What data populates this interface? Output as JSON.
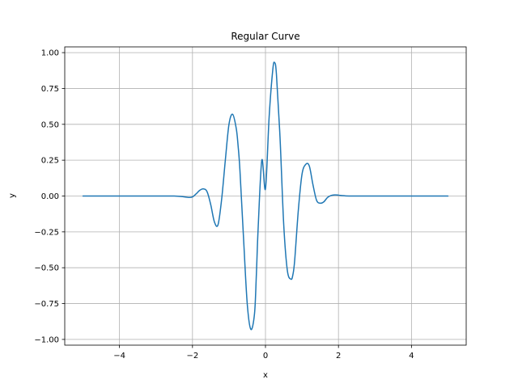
{
  "chart_data": {
    "type": "line",
    "title": "Regular Curve",
    "xlabel": "x",
    "ylabel": "y",
    "xlim": [
      -5.5,
      5.5
    ],
    "ylim": [
      -1.04,
      1.04
    ],
    "grid": true,
    "x_ticks": [
      -4,
      -2,
      0,
      2,
      4
    ],
    "x_tick_labels": [
      "−4",
      "−2",
      "0",
      "2",
      "4"
    ],
    "y_ticks": [
      -1.0,
      -0.75,
      -0.5,
      -0.25,
      0.0,
      0.25,
      0.5,
      0.75,
      1.0
    ],
    "y_tick_labels": [
      "−1.00",
      "−0.75",
      "−0.50",
      "−0.25",
      "0.00",
      "0.25",
      "0.50",
      "0.75",
      "1.00"
    ],
    "series": [
      {
        "color": "#1f77b4",
        "x": [
          -5,
          -4,
          -3,
          -2.5,
          -2.25,
          -2.1,
          -2.0,
          -1.9,
          -1.8,
          -1.7,
          -1.6,
          -1.5,
          -1.4,
          -1.3,
          -1.2,
          -1.1,
          -1.0,
          -0.9,
          -0.8,
          -0.75,
          -0.7,
          -0.6,
          -0.5,
          -0.4,
          -0.3,
          -0.25,
          -0.2,
          -0.1,
          0.0,
          0.1,
          0.2,
          0.25,
          0.3,
          0.4,
          0.5,
          0.6,
          0.7,
          0.75,
          0.8,
          0.9,
          1.0,
          1.1,
          1.2,
          1.3,
          1.4,
          1.5,
          1.6,
          1.7,
          1.8,
          1.9,
          2.0,
          2.1,
          2.2,
          2.4,
          2.7,
          3.0,
          4.0,
          5.0
        ],
        "y": [
          0.0,
          0.0,
          0.0,
          0.0,
          -0.005,
          -0.01,
          -0.006,
          0.015,
          0.04,
          0.05,
          0.03,
          -0.06,
          -0.18,
          -0.2,
          -0.02,
          0.25,
          0.5,
          0.57,
          0.47,
          0.35,
          0.18,
          -0.3,
          -0.75,
          -0.93,
          -0.82,
          -0.55,
          -0.22,
          0.25,
          0.05,
          0.55,
          0.88,
          0.93,
          0.85,
          0.4,
          -0.2,
          -0.52,
          -0.58,
          -0.55,
          -0.45,
          -0.1,
          0.15,
          0.22,
          0.21,
          0.08,
          -0.03,
          -0.05,
          -0.04,
          -0.01,
          0.004,
          0.008,
          0.006,
          0.003,
          0.001,
          0.0,
          0.0,
          0.0,
          0.0,
          0.0
        ]
      }
    ]
  }
}
